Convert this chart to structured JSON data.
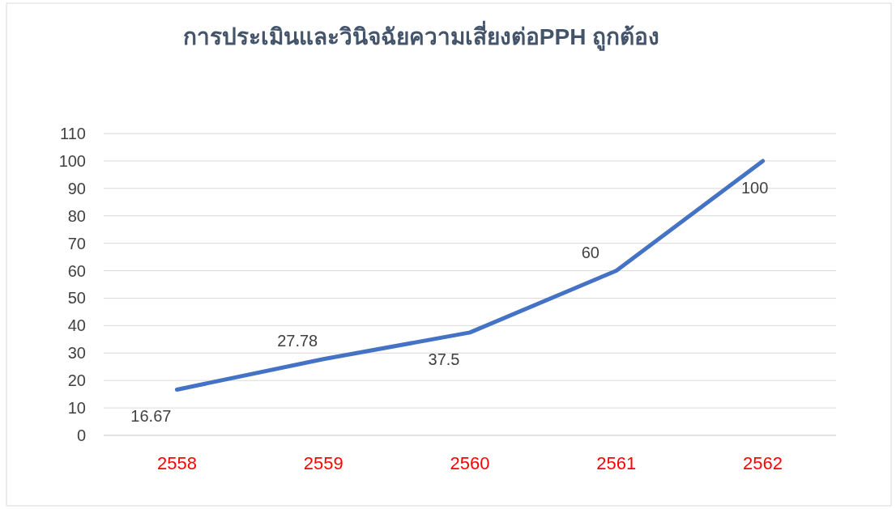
{
  "chart_data": {
    "type": "line",
    "title": "การประเมินและวินิจฉัยความเสี่ยงต่อPPH ถูกต้อง",
    "categories": [
      "2558",
      "2559",
      "2560",
      "2561",
      "2562"
    ],
    "series": [
      {
        "color": "#4472c4",
        "values": [
          16.67,
          27.78,
          37.5,
          60,
          100
        ]
      }
    ],
    "ylim": [
      0,
      110
    ],
    "yticks": [
      0,
      10,
      20,
      30,
      40,
      50,
      60,
      70,
      80,
      90,
      100,
      110
    ],
    "grid": "y",
    "data_labels": true,
    "marker": "none",
    "line_style": "solid"
  }
}
